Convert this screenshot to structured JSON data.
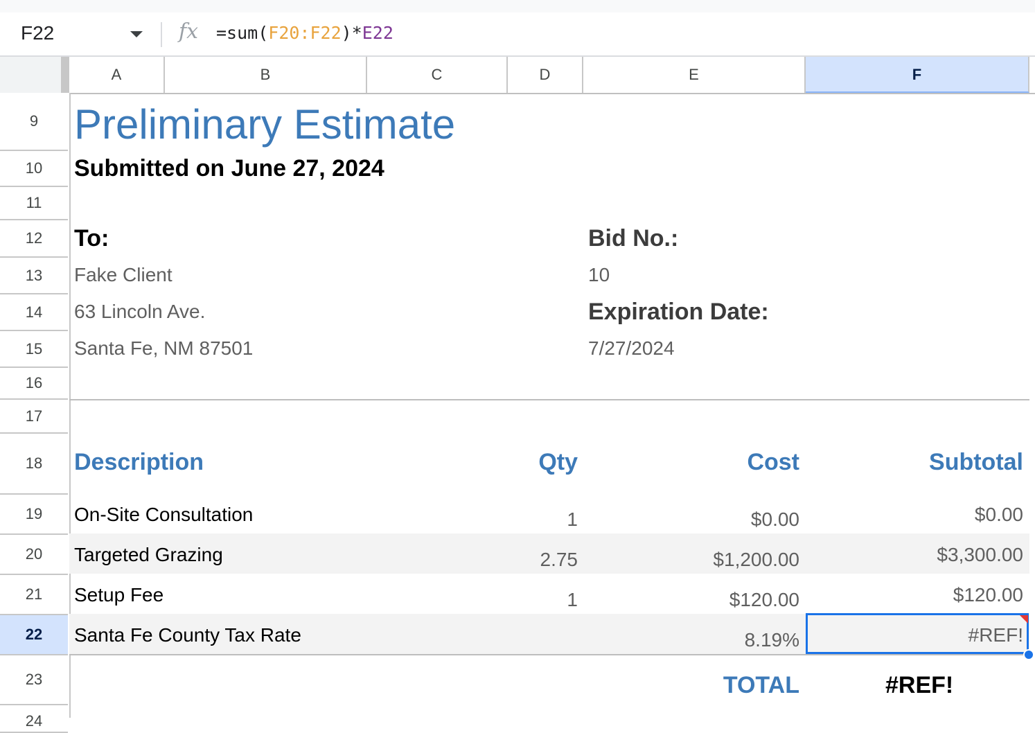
{
  "formula_bar": {
    "name_box": "F22",
    "fx_label": "fx",
    "formula_prefix": "=sum(",
    "formula_range": "F20:F22",
    "formula_mid": ")*",
    "formula_ref": "E22"
  },
  "columns": [
    "A",
    "B",
    "C",
    "D",
    "E",
    "F"
  ],
  "selected_column": "F",
  "rows": [
    "9",
    "10",
    "11",
    "12",
    "13",
    "14",
    "15",
    "16",
    "17",
    "18",
    "19",
    "20",
    "21",
    "22",
    "23",
    "24"
  ],
  "selected_row": "22",
  "sheet": {
    "title": "Preliminary Estimate",
    "subtitle": "Submitted on June 27, 2024",
    "to_label": "To:",
    "client_name": "Fake Client",
    "client_street": "63 Lincoln Ave.",
    "client_city": "Santa Fe, NM 87501",
    "bid_label": "Bid No.:",
    "bid_value": "10",
    "expiration_label": "Expiration Date:",
    "expiration_value": "7/27/2024",
    "table_headers": {
      "description": "Description",
      "qty": "Qty",
      "cost": "Cost",
      "subtotal": "Subtotal"
    },
    "items": [
      {
        "description": "On-Site Consultation",
        "qty": "1",
        "cost": "$0.00",
        "subtotal": "$0.00"
      },
      {
        "description": "Targeted Grazing",
        "qty": "2.75",
        "cost": "$1,200.00",
        "subtotal": "$3,300.00"
      },
      {
        "description": "Setup Fee",
        "qty": "1",
        "cost": "$120.00",
        "subtotal": "$120.00"
      },
      {
        "description": "Santa Fe County Tax Rate",
        "qty": "",
        "cost": "8.19%",
        "subtotal": "#REF!"
      }
    ],
    "total_label": "TOTAL",
    "total_value": "#REF!"
  },
  "colors": {
    "accent_blue": "#3d7ab8",
    "selection": "#1a73e8",
    "error_flag": "#e53935"
  }
}
